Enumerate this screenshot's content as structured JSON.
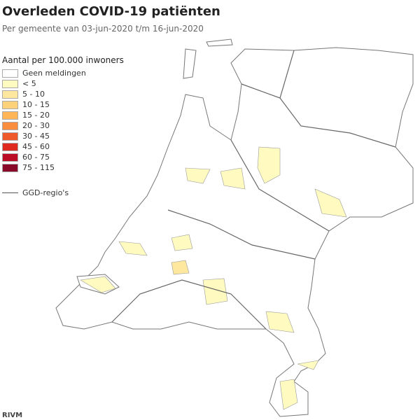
{
  "title": "Overleden COVID-19 patiënten",
  "subtitle": "Per gemeente van 03-jun-2020 t/m 16-jun-2020",
  "legend": {
    "title": "Aantal per 100.000 inwoners",
    "items": [
      {
        "label": "Geen meldingen",
        "color": "#ffffff"
      },
      {
        "label": "< 5",
        "color": "#fffbc0"
      },
      {
        "label": "5 - 10",
        "color": "#fee8a0"
      },
      {
        "label": "10 - 15",
        "color": "#fdd27a"
      },
      {
        "label": "15 - 20",
        "color": "#fdb558"
      },
      {
        "label": "20 - 30",
        "color": "#f98e3e"
      },
      {
        "label": "30 - 45",
        "color": "#ef5a2c"
      },
      {
        "label": "45 - 60",
        "color": "#df2a20"
      },
      {
        "label": "60 - 75",
        "color": "#bb0d25"
      },
      {
        "label": "75 - 115",
        "color": "#880a28"
      }
    ],
    "boundary_label": "GGD-regio's"
  },
  "source": "RIVM"
}
